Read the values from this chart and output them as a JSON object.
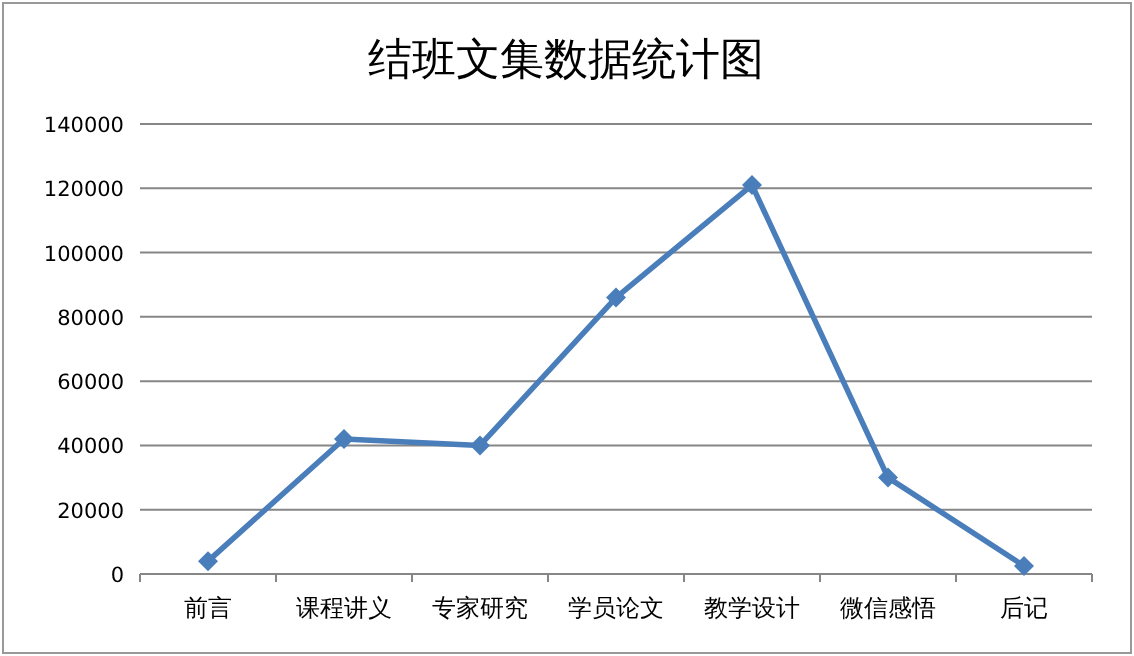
{
  "chart_data": {
    "type": "line",
    "title": "结班文集数据统计图",
    "categories": [
      "前言",
      "课程讲义",
      "专家研究",
      "学员论文",
      "教学设计",
      "微信感悟",
      "后记"
    ],
    "series": [
      {
        "color": "#4a7ebb",
        "values": [
          4000,
          42000,
          40000,
          86000,
          121000,
          30000,
          2500
        ]
      }
    ],
    "ylim": [
      0,
      140000
    ],
    "yticks": [
      0,
      20000,
      40000,
      60000,
      80000,
      100000,
      120000,
      140000
    ],
    "grid": "y",
    "marker": "diamond",
    "line_style": "solid"
  }
}
